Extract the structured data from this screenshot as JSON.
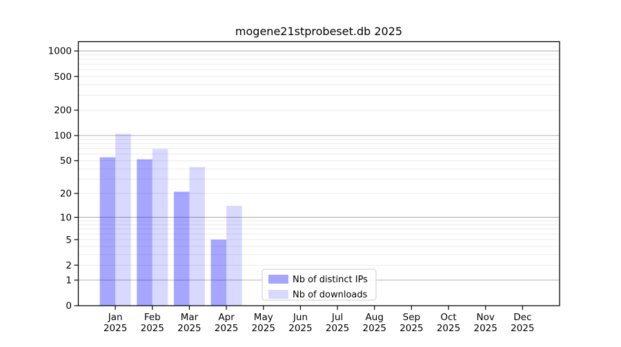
{
  "chart_data": {
    "type": "bar",
    "title": "mogene21stprobeset.db 2025",
    "categories": [
      "Jan 2025",
      "Feb 2025",
      "Mar 2025",
      "Apr 2025",
      "May 2025",
      "Jun 2025",
      "Jul 2025",
      "Aug 2025",
      "Sep 2025",
      "Oct 2025",
      "Nov 2025",
      "Dec 2025"
    ],
    "series": [
      {
        "name": "Nb of distinct IPs",
        "color": "rgba(0,0,255,0.35)",
        "color_hex": "#a6a6ff",
        "values": [
          55,
          52,
          21,
          5,
          0,
          0,
          0,
          0,
          0,
          0,
          0,
          0
        ]
      },
      {
        "name": "Nb of downloads",
        "color": "rgba(0,0,255,0.15)",
        "color_hex": "#d9d9ff",
        "values": [
          105,
          69,
          42,
          14,
          0,
          0,
          0,
          0,
          0,
          0,
          0,
          0
        ]
      }
    ],
    "y_axis": {
      "scale": "log1p",
      "tick_values": [
        1000,
        500,
        200,
        100,
        50,
        20,
        10,
        5,
        2,
        1,
        0
      ],
      "tick_labels": [
        "1000",
        "500",
        "200",
        "100",
        "50",
        "20",
        "10",
        "5",
        "2",
        "1",
        "0"
      ],
      "major_gridlines": [
        1,
        10,
        100,
        1000
      ],
      "minor_gridlines": [
        2,
        3,
        4,
        5,
        6,
        7,
        8,
        9,
        20,
        30,
        40,
        50,
        60,
        70,
        80,
        90,
        200,
        300,
        400,
        500,
        600,
        700,
        800,
        900
      ],
      "ylim": [
        0,
        1300
      ]
    },
    "grid": {
      "major_color": "#b0b0b0",
      "minor_color": "#e7e7e7"
    },
    "legend": {
      "position": "lower center"
    },
    "colors": {
      "axis": "#000000",
      "background": "#ffffff"
    }
  }
}
